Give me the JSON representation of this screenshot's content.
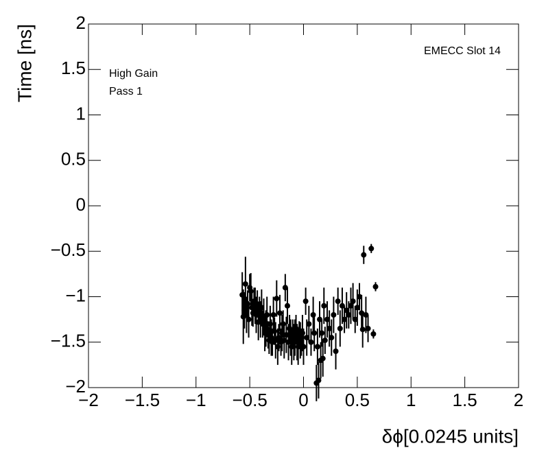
{
  "chart_data": {
    "type": "scatter",
    "xlabel": "δϕ[0.0245 units]",
    "ylabel": "Time [ns]",
    "annotations": [
      "EMECC Slot 14",
      "High Gain",
      "Pass 1"
    ],
    "color": "#000000",
    "xlim": [
      -2,
      2
    ],
    "ylim": [
      -2,
      2
    ],
    "xticks": [
      {
        "value": -2,
        "label": "−2"
      },
      {
        "value": -1.5,
        "label": "−1.5"
      },
      {
        "value": -1,
        "label": "−1"
      },
      {
        "value": -0.5,
        "label": "−0.5"
      },
      0,
      0.5,
      1,
      1.5,
      2
    ],
    "yticks": [
      {
        "value": -2,
        "label": "−2"
      },
      {
        "value": -1.5,
        "label": "−1.5"
      },
      {
        "value": -1,
        "label": "−1"
      },
      {
        "value": -0.5,
        "label": "−0.5"
      },
      0,
      0.5,
      1,
      1.5,
      2
    ],
    "x": [
      -0.57,
      -0.56,
      -0.55,
      -0.54,
      -0.53,
      -0.52,
      -0.51,
      -0.5,
      -0.49,
      -0.48,
      -0.47,
      -0.46,
      -0.45,
      -0.44,
      -0.43,
      -0.42,
      -0.41,
      -0.4,
      -0.39,
      -0.38,
      -0.37,
      -0.36,
      -0.35,
      -0.34,
      -0.33,
      -0.32,
      -0.31,
      -0.3,
      -0.29,
      -0.28,
      -0.27,
      -0.26,
      -0.25,
      -0.24,
      -0.23,
      -0.22,
      -0.21,
      -0.2,
      -0.19,
      -0.18,
      -0.17,
      -0.16,
      -0.15,
      -0.14,
      -0.13,
      -0.12,
      -0.11,
      -0.1,
      -0.09,
      -0.08,
      -0.07,
      -0.06,
      -0.05,
      -0.04,
      -0.03,
      -0.02,
      -0.01,
      0,
      0.02,
      0.03,
      0.05,
      0.07,
      0.09,
      0.1,
      0.12,
      0.13,
      0.14,
      0.15,
      0.16,
      0.17,
      0.18,
      0.19,
      0.2,
      0.22,
      0.24,
      0.26,
      0.28,
      0.3,
      0.32,
      0.34,
      0.36,
      0.38,
      0.4,
      0.42,
      0.44,
      0.46,
      0.48,
      0.5,
      0.52,
      0.54,
      0.55,
      0.56,
      0.58,
      0.6,
      0.63,
      0.65,
      0.67
    ],
    "values": [
      -0.98,
      -1.22,
      -1.15,
      -0.86,
      -1.2,
      -1.08,
      -1.25,
      -0.9,
      -0.94,
      -1.12,
      -1.18,
      -1.05,
      -1.1,
      -1.2,
      -1.08,
      -1.28,
      -1.15,
      -1.25,
      -1.12,
      -1.3,
      -1.22,
      -1.4,
      -1.35,
      -1.2,
      -1.42,
      -1.48,
      -1.3,
      -1.45,
      -1.5,
      -1.2,
      -1.38,
      -1.48,
      -1.02,
      -1.55,
      -1.45,
      -1.18,
      -1.5,
      -1.4,
      -1.3,
      -1.48,
      -0.9,
      -1.42,
      -1.1,
      -1.5,
      -1.35,
      -1.45,
      -1.55,
      -1.4,
      -1.5,
      -1.45,
      -1.35,
      -1.5,
      -1.55,
      -1.42,
      -1.48,
      -1.5,
      -1.4,
      -1.55,
      -1.05,
      -1.45,
      -1.3,
      -1.5,
      -1.2,
      -1.4,
      -1.95,
      -1.55,
      -1.92,
      -1.25,
      -1.7,
      -1.4,
      -1.68,
      -1.1,
      -1.48,
      -1.25,
      -1.35,
      -1.45,
      -1.2,
      -1.6,
      -1.05,
      -1.35,
      -1.1,
      -1.25,
      -1.15,
      -1.2,
      -1.1,
      -1.05,
      -1.25,
      -1.12,
      -1.0,
      -1.18,
      -1.36,
      -0.54,
      -1.2,
      -1.35,
      -0.47,
      -1.41,
      -0.89
    ],
    "errors": [
      0.25,
      0.3,
      0.2,
      0.3,
      0.2,
      0.15,
      0.2,
      0.15,
      0.2,
      0.2,
      0.15,
      0.15,
      0.2,
      0.2,
      0.15,
      0.2,
      0.15,
      0.2,
      0.2,
      0.15,
      0.2,
      0.2,
      0.2,
      0.2,
      0.15,
      0.15,
      0.2,
      0.2,
      0.15,
      0.2,
      0.15,
      0.2,
      0.2,
      0.2,
      0.15,
      0.2,
      0.15,
      0.2,
      0.15,
      0.2,
      0.15,
      0.2,
      0.2,
      0.2,
      0.15,
      0.2,
      0.2,
      0.15,
      0.2,
      0.2,
      0.15,
      0.2,
      0.2,
      0.15,
      0.2,
      0.15,
      0.2,
      0.2,
      0.15,
      0.2,
      0.2,
      0.15,
      0.2,
      0.2,
      0.2,
      0.2,
      0.2,
      0.2,
      0.2,
      0.15,
      0.2,
      0.2,
      0.15,
      0.2,
      0.2,
      0.2,
      0.2,
      0.2,
      0.15,
      0.2,
      0.2,
      0.15,
      0.2,
      0.15,
      0.2,
      0.2,
      0.15,
      0.2,
      0.15,
      0.2,
      0.2,
      0.1,
      0.2,
      0.15,
      0.05,
      0.05,
      0.05
    ]
  }
}
